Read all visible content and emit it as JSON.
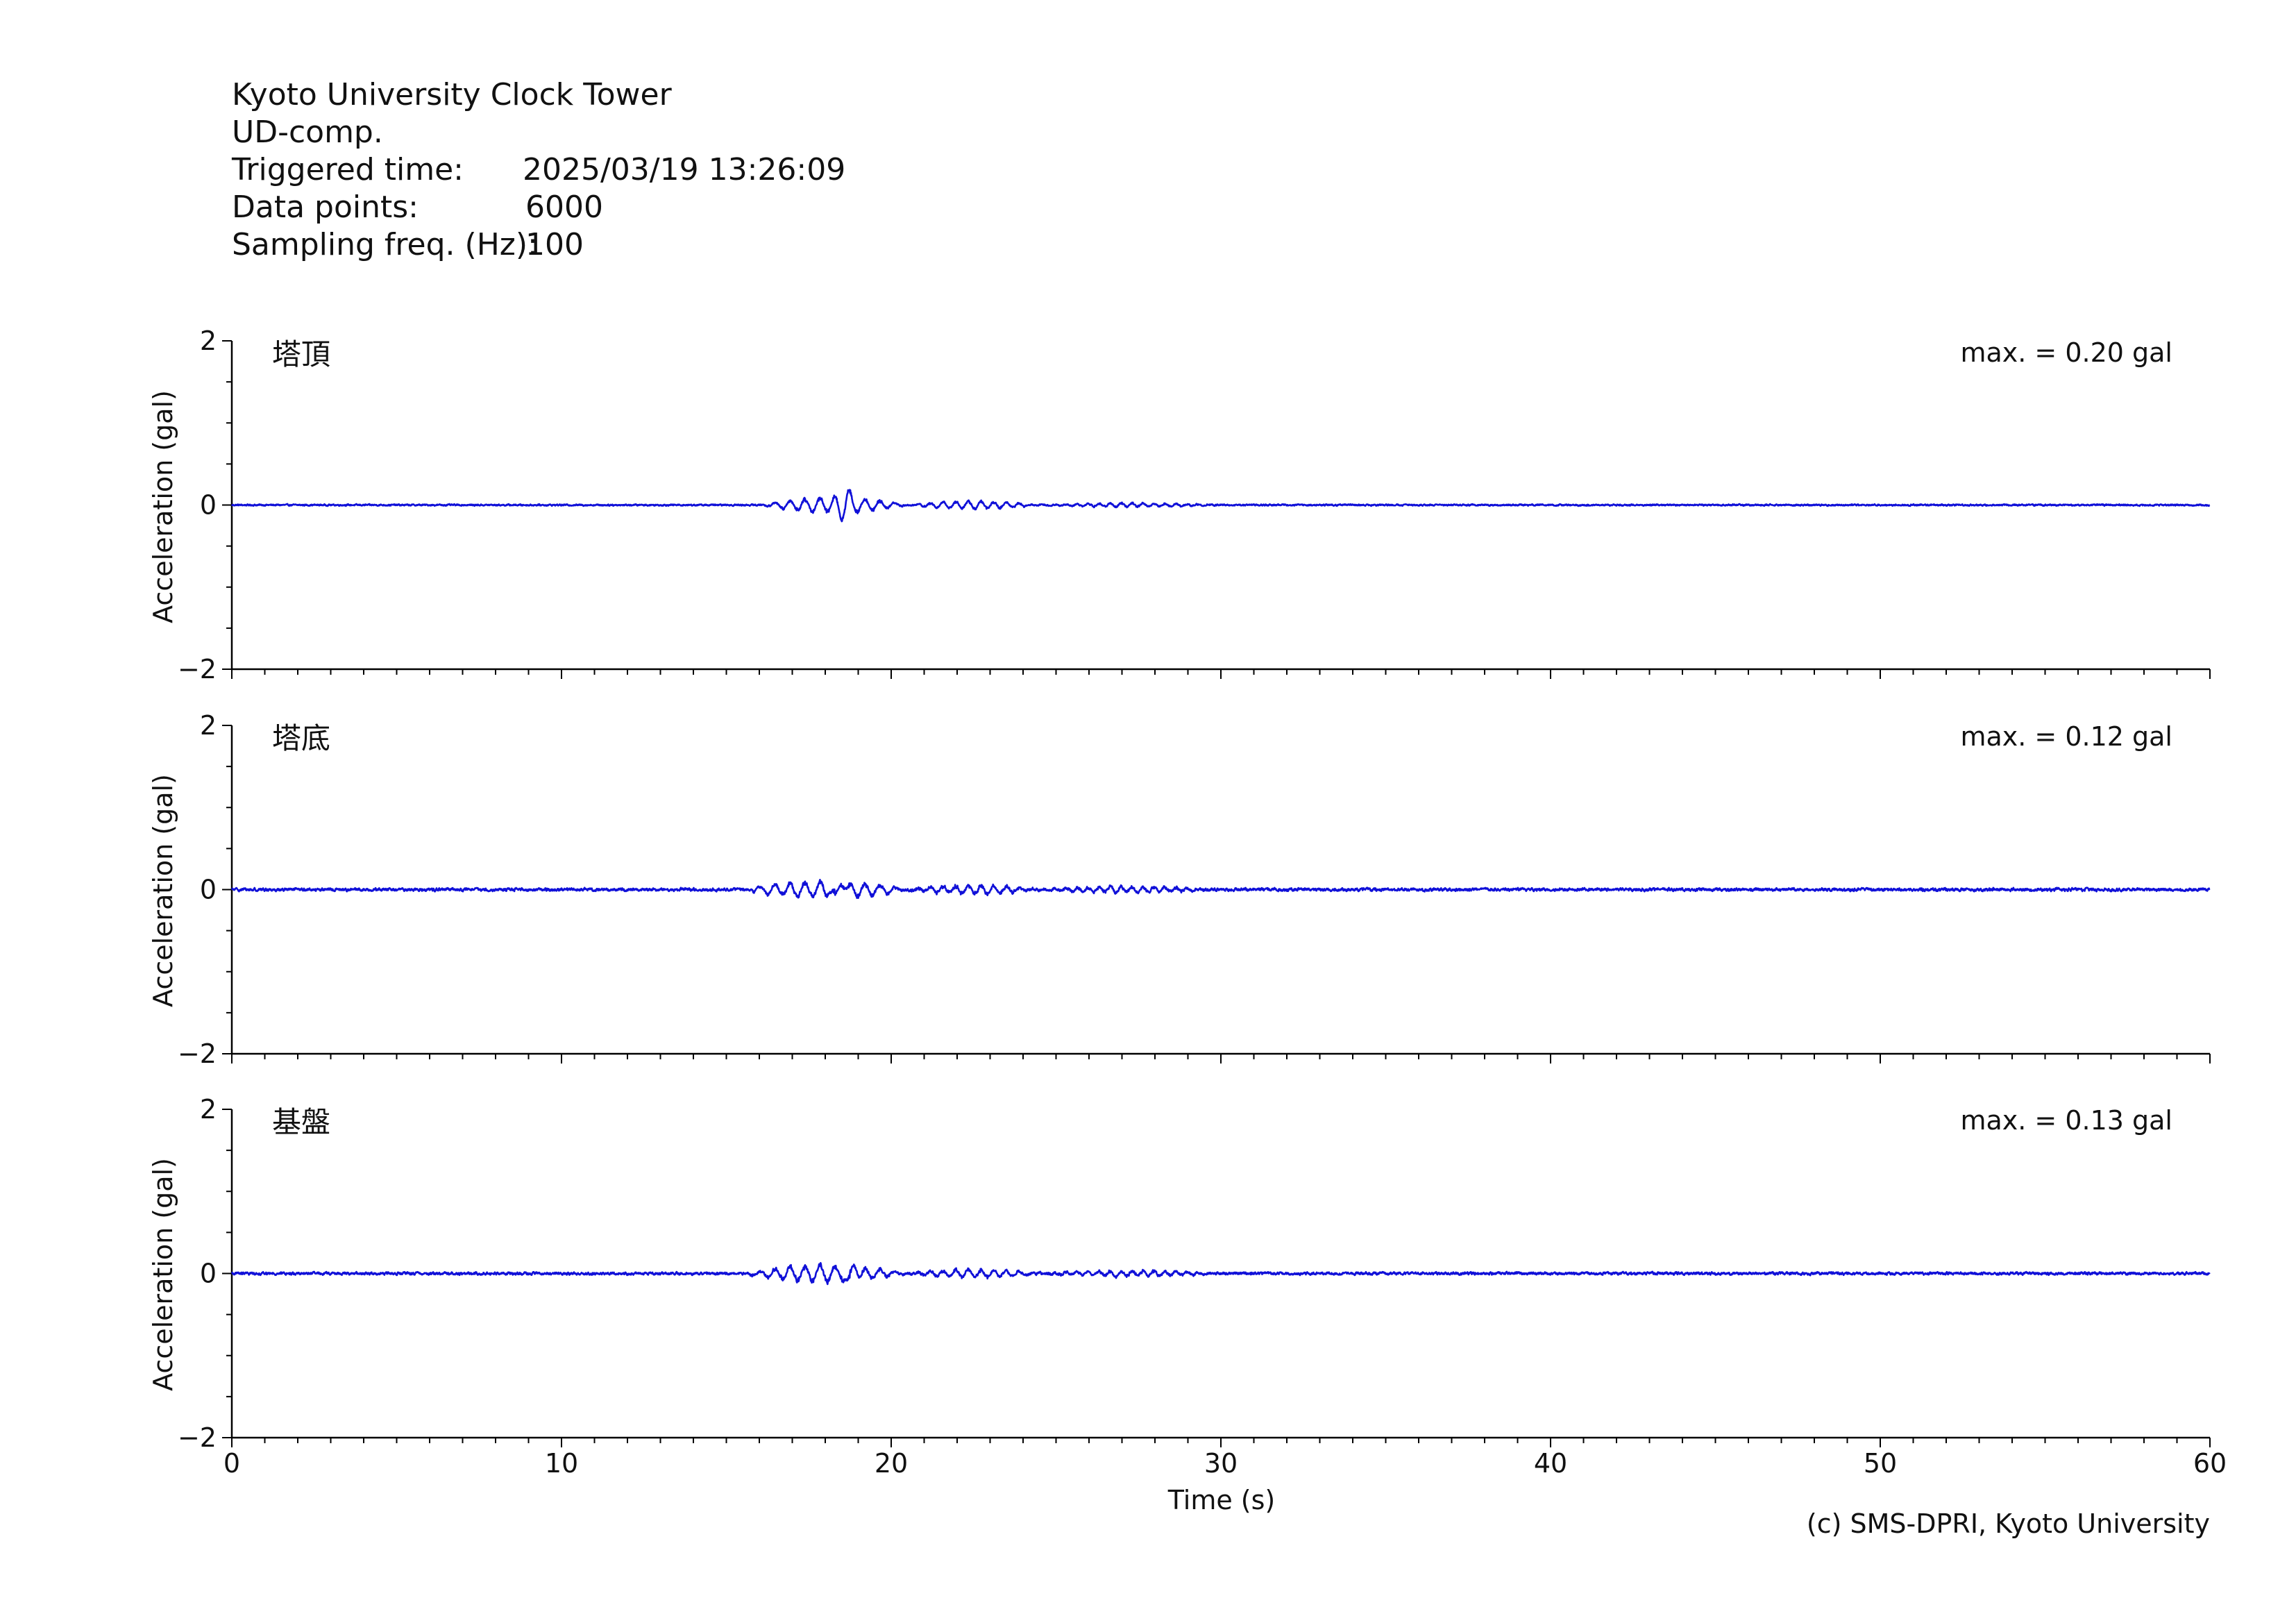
{
  "header": {
    "station": "Kyoto University Clock Tower",
    "component": "UD-comp.",
    "triggered_label": "Triggered time:",
    "triggered_value": "2025/03/19 13:26:09",
    "points_label": "Data points:",
    "points_value": "6000",
    "freq_label": "Sampling freq. (Hz):",
    "freq_value": "100"
  },
  "footer": {
    "copyright": "(c) SMS-DPRI, Kyoto University"
  },
  "colors": {
    "trace": "#1010d8"
  },
  "chart_data": [
    {
      "type": "line",
      "title": "塔頂",
      "annotation": "max. = 0.20 gal",
      "xlabel": "",
      "ylabel": "Acceleration (gal)",
      "xlim": [
        0,
        60
      ],
      "ylim": [
        -2,
        2
      ],
      "yticks": [
        "2",
        "0",
        "−2"
      ],
      "x_start": 0,
      "dt": 0.01,
      "n": 6000,
      "peak_abs": 0.2,
      "peak_time": 18.6,
      "note_bursts": [
        [
          16.0,
          20.5,
          0.2
        ],
        [
          20.5,
          24.5,
          0.1
        ],
        [
          24.5,
          30.0,
          0.05
        ]
      ],
      "background_noise": 0.02
    },
    {
      "type": "line",
      "title": "塔底",
      "annotation": "max. = 0.12 gal",
      "xlabel": "",
      "ylabel": "Acceleration (gal)",
      "xlim": [
        0,
        60
      ],
      "ylim": [
        -2,
        2
      ],
      "yticks": [
        "2",
        "0",
        "−2"
      ],
      "x_start": 0,
      "dt": 0.01,
      "n": 6000,
      "peak_abs": 0.12,
      "peak_time": 18.4,
      "note_bursts": [
        [
          15.5,
          20.5,
          0.12
        ],
        [
          20.5,
          24.5,
          0.06
        ],
        [
          24.5,
          30.0,
          0.04
        ]
      ],
      "background_noise": 0.02
    },
    {
      "type": "line",
      "title": "基盤",
      "annotation": "max. = 0.13 gal",
      "xlabel": "Time (s)",
      "ylabel": "Acceleration (gal)",
      "xlim": [
        0,
        60
      ],
      "ylim": [
        -2,
        2
      ],
      "yticks": [
        "2",
        "0",
        "−2"
      ],
      "xticks": [
        "0",
        "10",
        "20",
        "30",
        "40",
        "50",
        "60"
      ],
      "x_start": 0,
      "dt": 0.01,
      "n": 6000,
      "peak_abs": 0.13,
      "peak_time": 18.8,
      "note_bursts": [
        [
          15.5,
          20.5,
          0.13
        ],
        [
          20.5,
          24.5,
          0.06
        ],
        [
          24.5,
          30.0,
          0.04
        ]
      ],
      "background_noise": 0.02
    }
  ]
}
